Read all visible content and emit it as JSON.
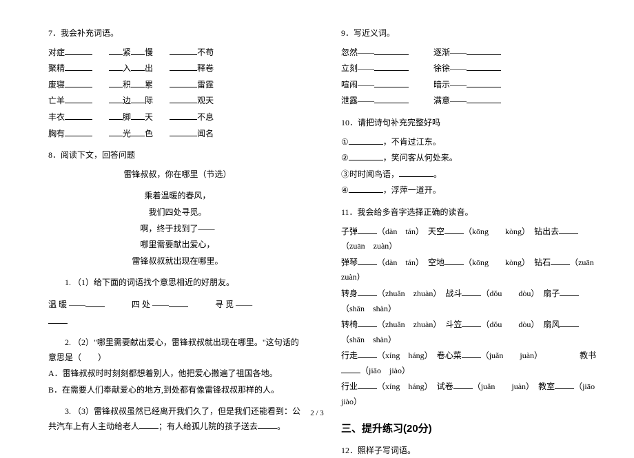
{
  "left": {
    "q7": {
      "title": "7．我会补充词语。",
      "rows": [
        [
          "对症",
          "紧",
          "慢",
          "不苟"
        ],
        [
          "聚精",
          "入",
          "出",
          "释卷"
        ],
        [
          "废寝",
          "积",
          "累",
          "雷霆"
        ],
        [
          "亡羊",
          "边",
          "际",
          "观天"
        ],
        [
          "丰衣",
          "脚",
          "天",
          "不息"
        ],
        [
          "胸有",
          "光",
          "色",
          "闻名"
        ]
      ]
    },
    "q8": {
      "title": "8．阅读下文，回答问题",
      "subtitle": "雷锋叔叔，你在哪里（节选）",
      "poem": [
        "乘着温暖的春风，",
        "我们四处寻觅。",
        "啊，终于找到了——",
        "哪里需要献出爱心，",
        "雷锋叔叔就出现在哪里。"
      ],
      "sub1_label": "1. （1）给下面的词语找个意思相近的好朋友。",
      "sub1_words": [
        {
          "a": "温 暖",
          "sep": "——"
        },
        {
          "a": "四 处",
          "sep": "——"
        },
        {
          "a": "寻 觅",
          "sep": "——"
        }
      ],
      "sub2_label": "2. （2）\"哪里需要献出爱心，雷锋叔叔就出现在哪里。\"这句话的意思是（　　）",
      "sub2_opts": [
        "A．雷锋叔叔时时刻刻都想着别人，他把爱心撒遍了祖国各地。",
        "B．在需要人们奉献爱心的地方,到处都有像雷锋叔叔那样的人。"
      ],
      "sub3_a": "3. （3）雷锋叔叔虽然已经离开我们久了，但是我们还能看到：公共汽车上有人主动给老人",
      "sub3_b": "；有人给孤儿院的孩子送去",
      "sub3_c": "。"
    }
  },
  "right": {
    "q9": {
      "title": "9．写近义词。",
      "pairs": [
        [
          "忽然——",
          "逐渐——"
        ],
        [
          "立刻——",
          "徐徐——"
        ],
        [
          "喧闹——",
          "暗示——"
        ],
        [
          "泄露——",
          "满意——"
        ]
      ]
    },
    "q10": {
      "title": "10．请把诗句补充完整好吗",
      "lines": [
        [
          "①",
          "，不肯过江东。"
        ],
        [
          "②",
          "，笑问客从何处来。"
        ],
        [
          "③时时闻鸟语，",
          "。"
        ],
        [
          "④",
          "，浮萍一道开。"
        ]
      ]
    },
    "q11": {
      "title": "11．我会给多音字选择正确的读音。",
      "items": [
        [
          "子弹",
          "（dàn　tán）",
          "天空",
          "（kōng　　kòng）",
          "钻出去",
          "（zuān　zuàn）"
        ],
        [
          "弹琴",
          "（dàn　tán）",
          "空地",
          "（kōng　　kòng）",
          "钻石",
          "（zuān　zuàn）"
        ],
        [
          "转身",
          "（zhuǎn　zhuàn）",
          "战斗",
          "（dǒu　　dòu）",
          "扇子",
          "（shān　shàn）"
        ],
        [
          "转椅",
          "（zhuǎn　zhuàn）",
          "斗笠",
          "（dǒu　　dòu）",
          "扇风",
          "（shān　shàn）"
        ],
        [
          "行走",
          "（xíng　háng）",
          "卷心菜",
          "（juǎn　　juàn）",
          "　　　　教书",
          "（jiāo　jiào）"
        ],
        [
          "行业",
          "（xíng　háng）",
          "试卷",
          "（juǎn　　juàn）",
          "教室",
          "（jiāo　jiào）"
        ]
      ]
    },
    "section3": "三、提升练习(20分)",
    "q12": "12．照样子写词语。"
  },
  "footer": "2 / 3"
}
